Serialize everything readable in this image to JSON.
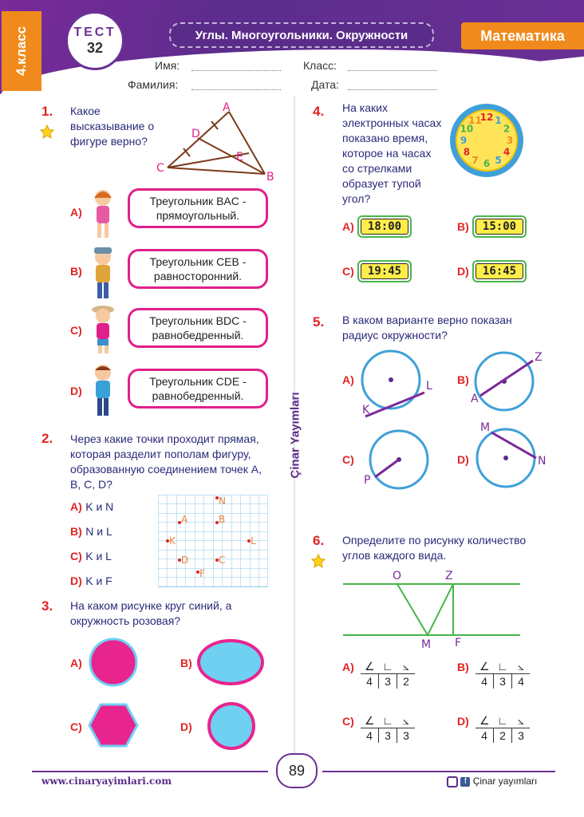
{
  "header": {
    "grade": "4.класс",
    "test_word": "ТЕСТ",
    "test_number": "32",
    "title": "Углы. Многоугольники. Окружности",
    "subject": "Математика"
  },
  "form": {
    "name_label": "Имя:",
    "surname_label": "Фамилия:",
    "class_label": "Класс:",
    "date_label": "Дата:"
  },
  "q1": {
    "num": "1.",
    "text": "Какое высказывание о фигуре верно?",
    "points": [
      "A",
      "D",
      "E",
      "C",
      "B"
    ],
    "options": [
      {
        "letter": "A)",
        "text": "Треугольник BAC - прямоугольный."
      },
      {
        "letter": "B)",
        "text": "Треугольник CEB - равносторонний."
      },
      {
        "letter": "C)",
        "text": "Треугольник BDC - равнобедренный."
      },
      {
        "letter": "D)",
        "text": "Треугольник CDE - равнобедренный."
      }
    ]
  },
  "q2": {
    "num": "2.",
    "text": "Через какие точки проходит прямая, которая разделит пополам фигуру, образованную соединением точек A, B, C, D?",
    "options": [
      {
        "letter": "A)",
        "text": "K и N"
      },
      {
        "letter": "B)",
        "text": "N и L"
      },
      {
        "letter": "C)",
        "text": "K и L"
      },
      {
        "letter": "D)",
        "text": "K и F"
      }
    ],
    "grid_points": [
      "N",
      "A",
      "B",
      "K",
      "L",
      "D",
      "C",
      "F"
    ]
  },
  "q3": {
    "num": "3.",
    "text": "На каком рисунке круг синий, а окружность розовая?",
    "options": [
      "A)",
      "B)",
      "C)",
      "D)"
    ],
    "colors": {
      "pink": "#e8248f",
      "blue": "#6fd0f2"
    }
  },
  "q4": {
    "num": "4.",
    "text": "На каких электронных часах показано время, которое на часах со стрелками образует тупой угол?",
    "options": [
      {
        "letter": "A)",
        "time": "18:00"
      },
      {
        "letter": "B)",
        "time": "15:00"
      },
      {
        "letter": "C)",
        "time": "19:45"
      },
      {
        "letter": "D)",
        "time": "16:45"
      }
    ],
    "clock_numbers": [
      "12",
      "1",
      "2",
      "3",
      "4",
      "5",
      "6",
      "7",
      "8",
      "9",
      "10",
      "11"
    ]
  },
  "q5": {
    "num": "5.",
    "text": "В каком варианте верно показан радиус окружности?",
    "options": [
      {
        "letter": "A)",
        "labels": [
          "L",
          "K"
        ]
      },
      {
        "letter": "B)",
        "labels": [
          "Z",
          "A"
        ]
      },
      {
        "letter": "C)",
        "labels": [
          "P"
        ]
      },
      {
        "letter": "D)",
        "labels": [
          "M",
          "N"
        ]
      }
    ]
  },
  "q6": {
    "num": "6.",
    "text": "Определите по рисунку количество углов каждого вида.",
    "points": [
      "O",
      "Z",
      "M",
      "F"
    ],
    "options": [
      {
        "letter": "A)",
        "values": [
          "4",
          "3",
          "2"
        ]
      },
      {
        "letter": "B)",
        "values": [
          "4",
          "3",
          "4"
        ]
      },
      {
        "letter": "C)",
        "values": [
          "4",
          "3",
          "3"
        ]
      },
      {
        "letter": "D)",
        "values": [
          "4",
          "2",
          "3"
        ]
      }
    ]
  },
  "side_label": "Çinar Yayımları",
  "footer": {
    "page": "89",
    "url": "www.cinaryayimlari.com",
    "brand": "Çinar yayımları"
  }
}
